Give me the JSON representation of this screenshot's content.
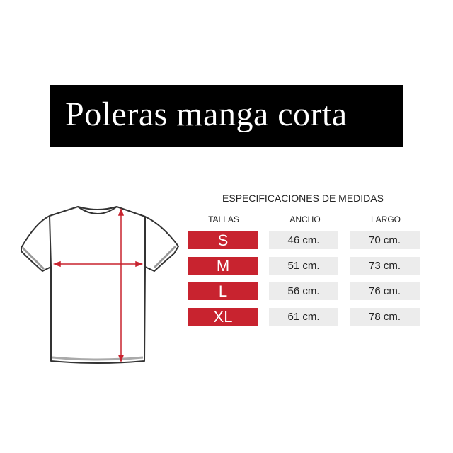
{
  "title": "Poleras manga corta",
  "table": {
    "heading": "ESPECIFICACIONES DE MEDIDAS",
    "columns": [
      "TALLAS",
      "ANCHO",
      "LARGO"
    ],
    "rows": [
      {
        "size": "S",
        "ancho": "46 cm.",
        "largo": "70 cm."
      },
      {
        "size": "M",
        "ancho": "51 cm.",
        "largo": "73 cm."
      },
      {
        "size": "L",
        "ancho": "56 cm.",
        "largo": "76 cm."
      },
      {
        "size": "XL",
        "ancho": "61 cm.",
        "largo": "78 cm."
      }
    ]
  },
  "colors": {
    "accent": "#c8232f",
    "cell": "#ececec",
    "banner": "#000000"
  }
}
